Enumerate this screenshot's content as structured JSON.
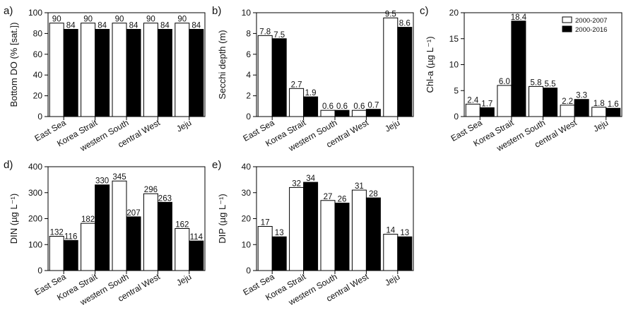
{
  "colors": {
    "series_2000_2007": "#ffffff",
    "series_2000_2016": "#000000",
    "stroke": "#000000"
  },
  "chart_data": [
    {
      "panel": "a)",
      "type": "bar",
      "categories": [
        "East Sea",
        "Korea Strait",
        "western South",
        "central West",
        "Jeju"
      ],
      "series": [
        {
          "name": "2000-2007",
          "values": [
            90,
            90,
            90,
            90,
            90
          ]
        },
        {
          "name": "2000-2016",
          "values": [
            84,
            84,
            84,
            84,
            84
          ]
        }
      ],
      "data_labels": [
        [
          "90",
          "90",
          "90",
          "90",
          "90"
        ],
        [
          "84",
          "84",
          "84",
          "84",
          "84"
        ]
      ],
      "ylabel": "Bottom DO (% [sat.])",
      "ylim": [
        0,
        100
      ],
      "yticks": [
        0,
        20,
        40,
        60,
        80,
        100
      ],
      "legend": "none"
    },
    {
      "panel": "b)",
      "type": "bar",
      "categories": [
        "East Sea",
        "Korea Strait",
        "western South",
        "central West",
        "Jeju"
      ],
      "series": [
        {
          "name": "2000-2007",
          "values": [
            7.8,
            2.7,
            0.6,
            0.6,
            9.5
          ]
        },
        {
          "name": "2000-2016",
          "values": [
            7.5,
            1.9,
            0.6,
            0.7,
            8.6
          ]
        }
      ],
      "data_labels": [
        [
          "7.8",
          "2.7",
          "0.6",
          "0.6",
          "9.5"
        ],
        [
          "7.5",
          "1.9",
          "0.6",
          "0.7",
          "8.6"
        ]
      ],
      "ylabel": "Secchi depth (m)",
      "ylim": [
        0,
        10
      ],
      "yticks": [
        0,
        2,
        4,
        6,
        8,
        10
      ],
      "legend": "none"
    },
    {
      "panel": "c)",
      "type": "bar",
      "categories": [
        "East Sea",
        "Korea Strait",
        "western South",
        "central West",
        "Jeju"
      ],
      "series": [
        {
          "name": "2000-2007",
          "values": [
            2.4,
            6.0,
            5.8,
            2.2,
            1.8
          ]
        },
        {
          "name": "2000-2016",
          "values": [
            1.7,
            18.4,
            5.5,
            3.3,
            1.6
          ]
        }
      ],
      "data_labels": [
        [
          "2.4",
          "6.0",
          "5.8",
          "2.2",
          "1.8"
        ],
        [
          "1.7",
          "18.4",
          "5.5",
          "3.3",
          "1.6"
        ]
      ],
      "ylabel": "Chl-a (µg L⁻¹)",
      "ylim": [
        0,
        20
      ],
      "yticks": [
        0,
        5,
        10,
        15,
        20
      ],
      "legend": "top-right"
    },
    {
      "panel": "d)",
      "type": "bar",
      "categories": [
        "East Sea",
        "Korea Strait",
        "western South",
        "central West",
        "Jeju"
      ],
      "series": [
        {
          "name": "2000-2007",
          "values": [
            132,
            182,
            345,
            296,
            162
          ]
        },
        {
          "name": "2000-2016",
          "values": [
            116,
            330,
            207,
            263,
            114
          ]
        }
      ],
      "data_labels": [
        [
          "132",
          "182",
          "345",
          "296",
          "162"
        ],
        [
          "116",
          "330",
          "207",
          "263",
          "114"
        ]
      ],
      "ylabel": "DIN (µg L⁻¹)",
      "ylim": [
        0,
        400
      ],
      "yticks": [
        0,
        100,
        200,
        300,
        400
      ],
      "legend": "none"
    },
    {
      "panel": "e)",
      "type": "bar",
      "categories": [
        "East Sea",
        "Korea Strait",
        "western South",
        "central West",
        "Jeju"
      ],
      "series": [
        {
          "name": "2000-2007",
          "values": [
            17,
            32,
            27,
            31,
            14
          ]
        },
        {
          "name": "2000-2016",
          "values": [
            13,
            34,
            26,
            28,
            13
          ]
        }
      ],
      "data_labels": [
        [
          "17",
          "32",
          "27",
          "31",
          "14"
        ],
        [
          "13",
          "34",
          "26",
          "28",
          "13"
        ]
      ],
      "ylabel": "DIP (µg L⁻¹)",
      "ylim": [
        0,
        40
      ],
      "yticks": [
        0,
        10,
        20,
        30,
        40
      ],
      "legend": "none"
    }
  ]
}
